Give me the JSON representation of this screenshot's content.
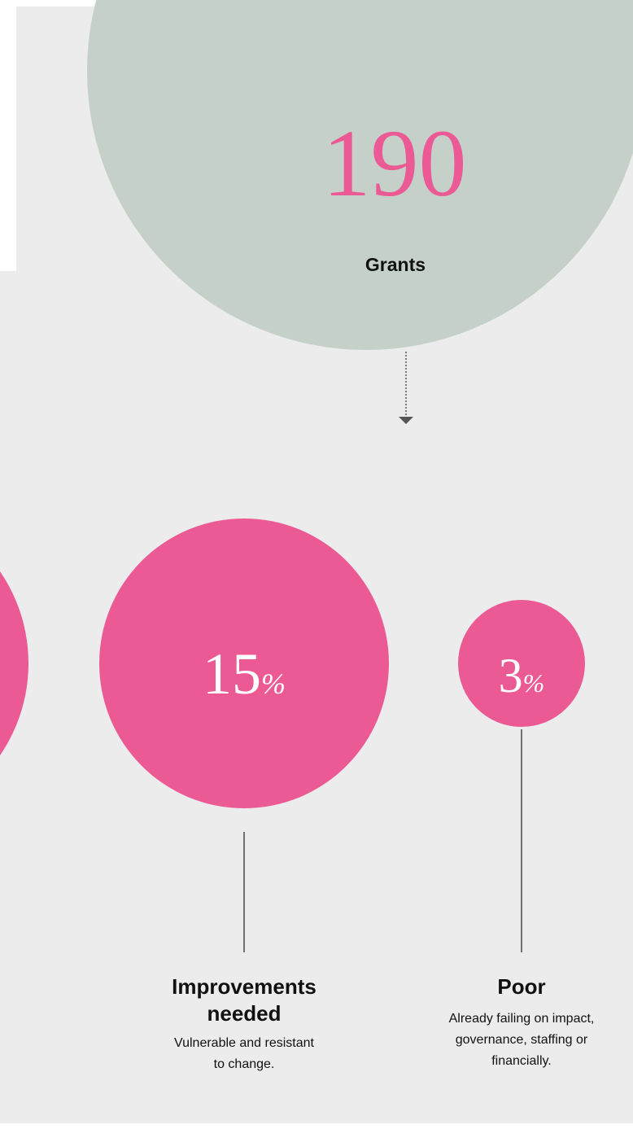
{
  "hero": {
    "value": "190",
    "label": "Grants"
  },
  "nodes": [
    {
      "value": "15",
      "unit": "%",
      "title": [
        "Improvements",
        "needed"
      ],
      "description": [
        "Vulnerable and resistant",
        "to change."
      ]
    },
    {
      "value": "3",
      "unit": "%",
      "title": [
        "Poor"
      ],
      "description": [
        "Already failing on impact,",
        "governance, staffing or",
        "financially."
      ]
    }
  ]
}
